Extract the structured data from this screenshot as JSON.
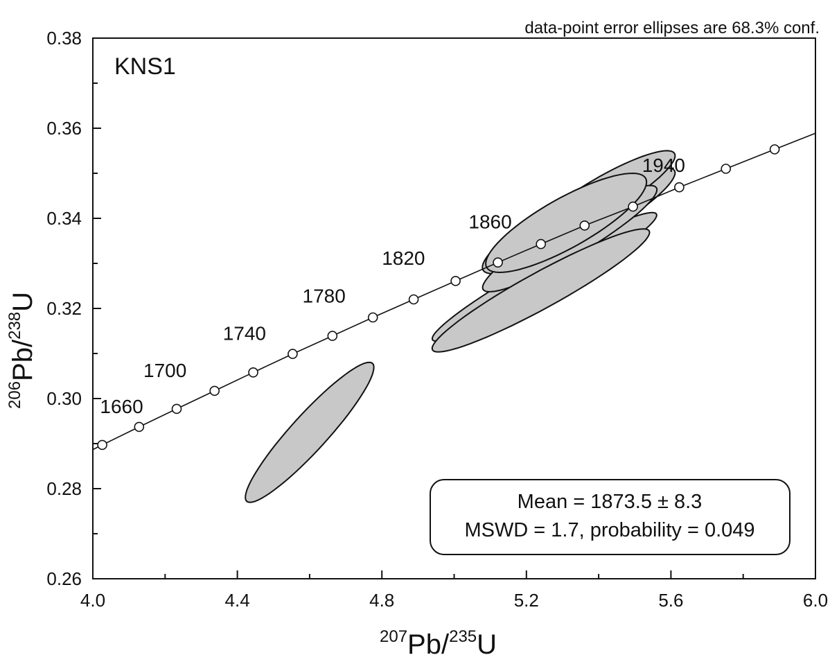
{
  "chart_data": {
    "type": "scatter",
    "title": "",
    "sample_label": "KNS1",
    "note": "data-point error ellipses are 68.3% conf.",
    "xlabel": {
      "sup1": "207",
      "base1": "Pb/",
      "sup2": "235",
      "base2": "U"
    },
    "ylabel": {
      "sup1": "206",
      "base1": "Pb/",
      "sup2": "238",
      "base2": "U"
    },
    "xlim": [
      4.0,
      6.0
    ],
    "ylim": [
      0.26,
      0.38
    ],
    "x_ticks": [
      4.0,
      4.4,
      4.8,
      5.2,
      5.6,
      6.0
    ],
    "x_tick_labels": [
      "4.0",
      "4.4",
      "4.8",
      "5.2",
      "5.6",
      "6.0"
    ],
    "x_minor_ticks": [
      4.2,
      4.6,
      5.0,
      5.4,
      5.8
    ],
    "y_ticks": [
      0.26,
      0.28,
      0.3,
      0.32,
      0.34,
      0.36,
      0.38
    ],
    "y_tick_labels": [
      "0.26",
      "0.28",
      "0.30",
      "0.32",
      "0.34",
      "0.36",
      "0.38"
    ],
    "y_minor_ticks": [
      0.27,
      0.29,
      0.31,
      0.33,
      0.35,
      0.37
    ],
    "concordia": {
      "line_range": [
        4.0,
        6.0
      ],
      "markers": [
        {
          "age": 1660,
          "x": 4.026,
          "y": 0.2897
        },
        {
          "age": 1680,
          "x": 4.128,
          "y": 0.2937
        },
        {
          "age": 1700,
          "x": 4.232,
          "y": 0.2977
        },
        {
          "age": 1720,
          "x": 4.337,
          "y": 0.3017
        },
        {
          "age": 1740,
          "x": 4.444,
          "y": 0.3058
        },
        {
          "age": 1760,
          "x": 4.553,
          "y": 0.3099
        },
        {
          "age": 1780,
          "x": 4.663,
          "y": 0.3139
        },
        {
          "age": 1800,
          "x": 4.775,
          "y": 0.318
        },
        {
          "age": 1820,
          "x": 4.888,
          "y": 0.322
        },
        {
          "age": 1840,
          "x": 5.004,
          "y": 0.3261
        },
        {
          "age": 1860,
          "x": 5.121,
          "y": 0.3302
        },
        {
          "age": 1880,
          "x": 5.24,
          "y": 0.3343
        },
        {
          "age": 1900,
          "x": 5.361,
          "y": 0.3384
        },
        {
          "age": 1920,
          "x": 5.495,
          "y": 0.3426
        },
        {
          "age": 1940,
          "x": 5.623,
          "y": 0.3469
        },
        {
          "age": 1960,
          "x": 5.752,
          "y": 0.351
        },
        {
          "age": 1980,
          "x": 5.887,
          "y": 0.3553
        }
      ],
      "labels": [
        {
          "text": "1660",
          "x": 4.02,
          "y": 0.2968
        },
        {
          "text": "1700",
          "x": 4.14,
          "y": 0.3048
        },
        {
          "text": "1740",
          "x": 4.36,
          "y": 0.313
        },
        {
          "text": "1780",
          "x": 4.58,
          "y": 0.3213
        },
        {
          "text": "1820",
          "x": 4.8,
          "y": 0.3297
        },
        {
          "text": "1860",
          "x": 5.04,
          "y": 0.3378
        },
        {
          "text": "1940",
          "x": 5.52,
          "y": 0.3503
        }
      ]
    },
    "ellipses": [
      {
        "cx": 4.6,
        "cy": 0.2925,
        "a": 0.174,
        "b": 0.004,
        "slope": 0.088
      },
      {
        "cx": 5.25,
        "cy": 0.327,
        "a": 0.31,
        "b": 0.0035,
        "slope": 0.045
      },
      {
        "cx": 5.33,
        "cy": 0.34,
        "a": 0.25,
        "b": 0.005,
        "slope": 0.046
      },
      {
        "cx": 5.38,
        "cy": 0.343,
        "a": 0.22,
        "b": 0.004,
        "slope": 0.047
      },
      {
        "cx": 5.4,
        "cy": 0.3405,
        "a": 0.21,
        "b": 0.004,
        "slope": 0.048
      },
      {
        "cx": 5.41,
        "cy": 0.345,
        "a": 0.2,
        "b": 0.004,
        "slope": 0.047
      },
      {
        "cx": 5.32,
        "cy": 0.3355,
        "a": 0.24,
        "b": 0.004,
        "slope": 0.047
      },
      {
        "cx": 5.24,
        "cy": 0.324,
        "a": 0.3,
        "b": 0.004,
        "slope": 0.044
      },
      {
        "cx": 5.31,
        "cy": 0.339,
        "a": 0.22,
        "b": 0.0055,
        "slope": 0.045
      }
    ],
    "colors": {
      "ellipse_fill": "#c8c8c8",
      "line": "#111111",
      "marker_fill": "#ffffff"
    }
  },
  "stats_box": {
    "line1": "Mean = 1873.5 ± 8.3",
    "line2": "MSWD = 1.7, probability = 0.049"
  }
}
